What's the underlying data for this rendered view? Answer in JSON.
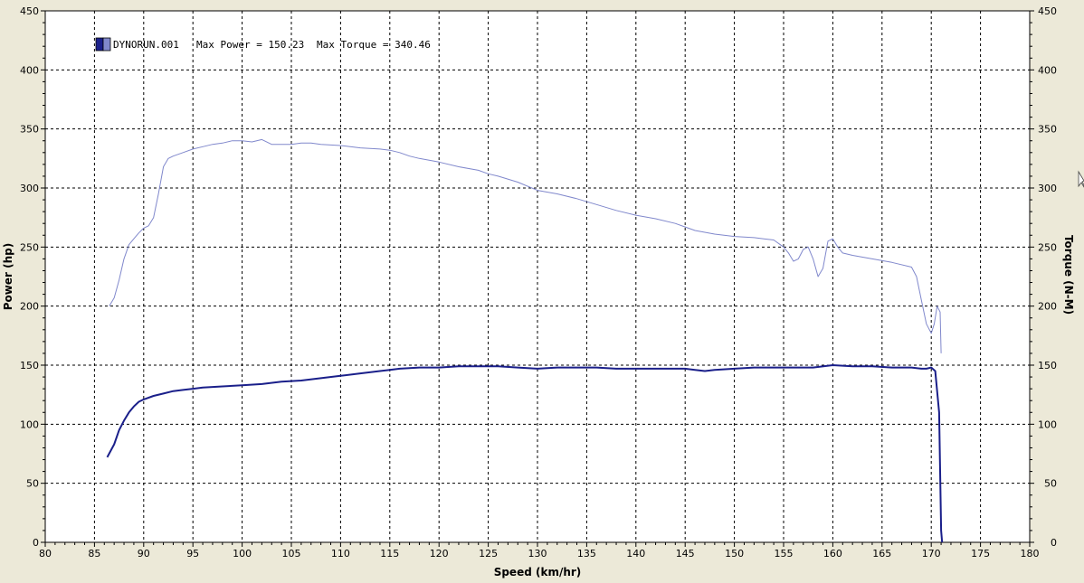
{
  "chart_data": {
    "type": "line",
    "title": "",
    "xlabel": "Speed (km/hr)",
    "ylabel": "Power (hp)",
    "y2label": "Torque (N-M)",
    "xlim": [
      80,
      180
    ],
    "ylim": [
      0,
      450
    ],
    "y2lim": [
      0,
      450
    ],
    "x_ticks": [
      80,
      85,
      90,
      95,
      100,
      105,
      110,
      115,
      120,
      125,
      130,
      135,
      140,
      145,
      150,
      155,
      160,
      165,
      170,
      175,
      180
    ],
    "y_ticks": [
      0,
      50,
      100,
      150,
      200,
      250,
      300,
      350,
      400,
      450
    ],
    "grid": true,
    "legend": {
      "placement": "top-left",
      "entries": [
        {
          "run": "DYNORUN.001",
          "power_text": "Max Power = 150.23",
          "torque_text": "Max Torque = 340.46"
        }
      ]
    },
    "series": [
      {
        "key": "torque",
        "color": "#8088cc",
        "axis": "right",
        "x": [
          86.5,
          87,
          87.5,
          88,
          88.5,
          89,
          89.5,
          90,
          90.5,
          91,
          91.5,
          92,
          92.5,
          93,
          94,
          95,
          96,
          97,
          98,
          99,
          100,
          101,
          102,
          103,
          104,
          105,
          106,
          107,
          108,
          110,
          112,
          114,
          115,
          116,
          117,
          118,
          120,
          122,
          124,
          125,
          126,
          128,
          130,
          132,
          134,
          136,
          138,
          140,
          142,
          144,
          145,
          146,
          148,
          150,
          152,
          153,
          154,
          155,
          155.5,
          156,
          156.5,
          157,
          157.5,
          158,
          158.5,
          159,
          159.5,
          160,
          160.5,
          161,
          162,
          164,
          166,
          168,
          168.5,
          169,
          169.5,
          170,
          170.3,
          170.6,
          170.9,
          171
        ],
        "values": [
          200,
          207,
          222,
          240,
          252,
          257,
          262,
          266,
          268,
          275,
          295,
          318,
          325,
          327,
          330,
          333,
          335,
          337,
          338,
          340,
          340,
          339,
          341,
          337,
          337,
          337,
          338,
          338,
          337,
          336,
          334,
          333,
          332,
          330,
          327,
          325,
          322,
          318,
          315,
          312,
          310,
          305,
          298,
          295,
          291,
          286,
          281,
          277,
          274,
          270,
          267,
          264,
          261,
          259,
          258,
          257,
          256,
          250,
          245,
          238,
          240,
          248,
          250,
          240,
          225,
          232,
          255,
          257,
          250,
          245,
          243,
          240,
          237,
          233,
          225,
          205,
          185,
          177,
          185,
          200,
          195,
          160
        ]
      },
      {
        "key": "power",
        "color": "#1a1f8a",
        "axis": "left",
        "x": [
          86.3,
          87,
          87.5,
          88,
          88.5,
          89,
          89.5,
          90,
          91,
          92,
          93,
          94,
          95,
          96,
          98,
          100,
          102,
          104,
          106,
          108,
          110,
          112,
          114,
          115,
          116,
          118,
          120,
          122,
          124,
          126,
          128,
          130,
          132,
          134,
          136,
          138,
          140,
          142,
          144,
          145,
          146,
          147,
          148,
          150,
          152,
          154,
          156,
          158,
          160,
          162,
          164,
          166,
          168,
          169,
          169.5,
          170,
          170.4,
          170.8,
          171,
          171.1
        ],
        "values": [
          72,
          83,
          95,
          103,
          110,
          115,
          119,
          121,
          124,
          126,
          128,
          129,
          130,
          131,
          132,
          133,
          134,
          136,
          137,
          139,
          141,
          143,
          145,
          146,
          147,
          148,
          148,
          149,
          149,
          149,
          148,
          147,
          148,
          148,
          148,
          147,
          147,
          147,
          147,
          147,
          146,
          145,
          146,
          147,
          148,
          148,
          148,
          148,
          150,
          149,
          149,
          148,
          148,
          147,
          147,
          148,
          145,
          110,
          10,
          0
        ]
      }
    ]
  }
}
